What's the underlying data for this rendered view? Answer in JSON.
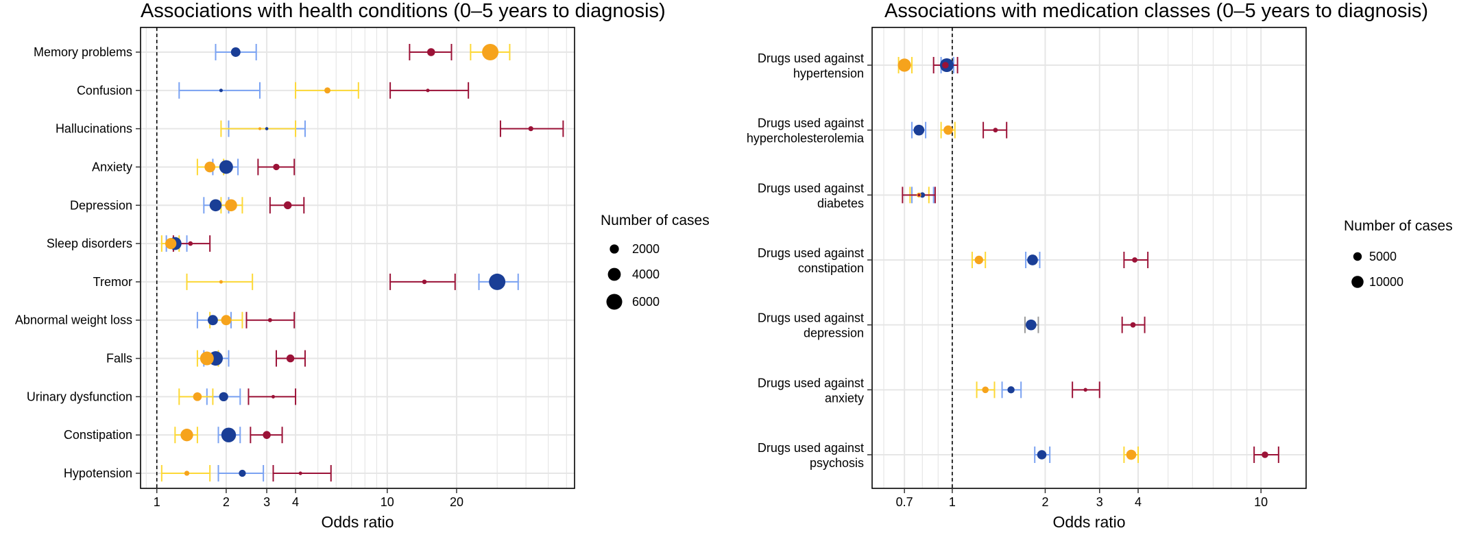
{
  "colors": {
    "grid": "#e6e6e6",
    "dark_blue": "#1a3e96",
    "light_blue": "#7aa2f2",
    "orange": "#f6a31c",
    "yellow": "#fdd835",
    "dark_red": "#9b1237",
    "gray": "#9a9a9a"
  },
  "chart_data": [
    {
      "type": "scatter",
      "title": "Associations with health conditions (0–5 years to diagnosis)",
      "xlabel": "Odds ratio",
      "x_scale": "log",
      "xlim": [
        0.85,
        65
      ],
      "x_ticks": [
        1,
        2,
        3,
        4,
        10,
        20
      ],
      "x_tick_labels": [
        "1",
        "2",
        "3",
        "4",
        "10",
        "20"
      ],
      "reference_line": 1,
      "categories": [
        "Memory problems",
        "Confusion",
        "Hallucinations",
        "Anxiety",
        "Depression",
        "Sleep disorders",
        "Tremor",
        "Abnormal weight loss",
        "Falls",
        "Urinary dysfunction",
        "Constipation",
        "Hypotension"
      ],
      "legend_title": "Number of cases",
      "legend_sizes": [
        2000,
        4000,
        6000
      ],
      "legend_labels": [
        "2000",
        "4000",
        "6000"
      ],
      "points": [
        {
          "category": "Memory problems",
          "or": 2.2,
          "lo": 1.8,
          "hi": 2.7,
          "n": 2200,
          "color": "dark_blue",
          "bar_color": "light_blue"
        },
        {
          "category": "Memory problems",
          "or": 28,
          "lo": 23,
          "hi": 34,
          "n": 6500,
          "color": "orange",
          "bar_color": "yellow"
        },
        {
          "category": "Memory problems",
          "or": 15.5,
          "lo": 12.5,
          "hi": 19,
          "n": 1500,
          "color": "dark_red",
          "bar_color": "dark_red"
        },
        {
          "category": "Confusion",
          "or": 1.9,
          "lo": 1.25,
          "hi": 2.8,
          "n": 300,
          "color": "dark_blue",
          "bar_color": "light_blue"
        },
        {
          "category": "Confusion",
          "or": 5.5,
          "lo": 4.0,
          "hi": 7.5,
          "n": 900,
          "color": "orange",
          "bar_color": "yellow"
        },
        {
          "category": "Confusion",
          "or": 15,
          "lo": 10.3,
          "hi": 22.5,
          "n": 300,
          "color": "dark_red",
          "bar_color": "dark_red"
        },
        {
          "category": "Hallucinations",
          "or": 3.0,
          "lo": 2.05,
          "hi": 4.4,
          "n": 250,
          "color": "dark_blue",
          "bar_color": "light_blue"
        },
        {
          "category": "Hallucinations",
          "or": 2.8,
          "lo": 1.9,
          "hi": 4.0,
          "n": 200,
          "color": "orange",
          "bar_color": "yellow"
        },
        {
          "category": "Hallucinations",
          "or": 42,
          "lo": 31,
          "hi": 58,
          "n": 600,
          "color": "dark_red",
          "bar_color": "dark_red"
        },
        {
          "category": "Anxiety",
          "or": 2.0,
          "lo": 1.75,
          "hi": 2.25,
          "n": 4500,
          "color": "dark_blue",
          "bar_color": "light_blue"
        },
        {
          "category": "Anxiety",
          "or": 1.7,
          "lo": 1.5,
          "hi": 1.95,
          "n": 2800,
          "color": "orange",
          "bar_color": "yellow"
        },
        {
          "category": "Anxiety",
          "or": 3.3,
          "lo": 2.75,
          "hi": 3.95,
          "n": 1000,
          "color": "dark_red",
          "bar_color": "dark_red"
        },
        {
          "category": "Depression",
          "or": 1.8,
          "lo": 1.6,
          "hi": 2.05,
          "n": 3500,
          "color": "dark_blue",
          "bar_color": "light_blue"
        },
        {
          "category": "Depression",
          "or": 2.1,
          "lo": 1.9,
          "hi": 2.35,
          "n": 3500,
          "color": "orange",
          "bar_color": "yellow"
        },
        {
          "category": "Depression",
          "or": 3.7,
          "lo": 3.1,
          "hi": 4.35,
          "n": 1500,
          "color": "dark_red",
          "bar_color": "dark_red"
        },
        {
          "category": "Sleep disorders",
          "or": 1.2,
          "lo": 1.1,
          "hi": 1.35,
          "n": 4000,
          "color": "dark_blue",
          "bar_color": "light_blue"
        },
        {
          "category": "Sleep disorders",
          "or": 1.15,
          "lo": 1.05,
          "hi": 1.25,
          "n": 3000,
          "color": "orange",
          "bar_color": "yellow"
        },
        {
          "category": "Sleep disorders",
          "or": 1.4,
          "lo": 1.18,
          "hi": 1.7,
          "n": 500,
          "color": "dark_red",
          "bar_color": "dark_red"
        },
        {
          "category": "Tremor",
          "or": 30,
          "lo": 25,
          "hi": 37,
          "n": 6500,
          "color": "dark_blue",
          "bar_color": "light_blue"
        },
        {
          "category": "Tremor",
          "or": 1.9,
          "lo": 1.35,
          "hi": 2.6,
          "n": 300,
          "color": "orange",
          "bar_color": "yellow"
        },
        {
          "category": "Tremor",
          "or": 14.5,
          "lo": 10.3,
          "hi": 19.7,
          "n": 500,
          "color": "dark_red",
          "bar_color": "dark_red"
        },
        {
          "category": "Abnormal weight loss",
          "or": 1.75,
          "lo": 1.5,
          "hi": 2.1,
          "n": 2500,
          "color": "dark_blue",
          "bar_color": "light_blue"
        },
        {
          "category": "Abnormal weight loss",
          "or": 2.0,
          "lo": 1.7,
          "hi": 2.35,
          "n": 2500,
          "color": "orange",
          "bar_color": "yellow"
        },
        {
          "category": "Abnormal weight loss",
          "or": 3.1,
          "lo": 2.45,
          "hi": 3.95,
          "n": 400,
          "color": "dark_red",
          "bar_color": "dark_red"
        },
        {
          "category": "Falls",
          "or": 1.8,
          "lo": 1.6,
          "hi": 2.05,
          "n": 5000,
          "color": "dark_blue",
          "bar_color": "light_blue"
        },
        {
          "category": "Falls",
          "or": 1.65,
          "lo": 1.5,
          "hi": 1.85,
          "n": 4500,
          "color": "orange",
          "bar_color": "yellow"
        },
        {
          "category": "Falls",
          "or": 3.8,
          "lo": 3.3,
          "hi": 4.4,
          "n": 1500,
          "color": "dark_red",
          "bar_color": "dark_red"
        },
        {
          "category": "Urinary dysfunction",
          "or": 1.95,
          "lo": 1.65,
          "hi": 2.3,
          "n": 2000,
          "color": "dark_blue",
          "bar_color": "light_blue"
        },
        {
          "category": "Urinary dysfunction",
          "or": 1.5,
          "lo": 1.25,
          "hi": 1.75,
          "n": 1800,
          "color": "orange",
          "bar_color": "yellow"
        },
        {
          "category": "Urinary dysfunction",
          "or": 3.2,
          "lo": 2.5,
          "hi": 4.0,
          "n": 300,
          "color": "dark_red",
          "bar_color": "dark_red"
        },
        {
          "category": "Constipation",
          "or": 2.05,
          "lo": 1.85,
          "hi": 2.3,
          "n": 5200,
          "color": "dark_blue",
          "bar_color": "light_blue"
        },
        {
          "category": "Constipation",
          "or": 1.35,
          "lo": 1.2,
          "hi": 1.5,
          "n": 3800,
          "color": "orange",
          "bar_color": "yellow"
        },
        {
          "category": "Constipation",
          "or": 3.0,
          "lo": 2.55,
          "hi": 3.5,
          "n": 1500,
          "color": "dark_red",
          "bar_color": "dark_red"
        },
        {
          "category": "Hypotension",
          "or": 2.35,
          "lo": 1.85,
          "hi": 2.9,
          "n": 1200,
          "color": "dark_blue",
          "bar_color": "light_blue"
        },
        {
          "category": "Hypotension",
          "or": 1.35,
          "lo": 1.05,
          "hi": 1.7,
          "n": 600,
          "color": "orange",
          "bar_color": "yellow"
        },
        {
          "category": "Hypotension",
          "or": 4.2,
          "lo": 3.2,
          "hi": 5.7,
          "n": 300,
          "color": "dark_red",
          "bar_color": "dark_red"
        }
      ]
    },
    {
      "type": "scatter",
      "title": "Associations with medication classes (0–5 years to diagnosis)",
      "xlabel": "Odds ratio",
      "x_scale": "log",
      "xlim": [
        0.55,
        14
      ],
      "x_ticks": [
        0.7,
        1,
        2,
        3,
        4,
        10
      ],
      "x_tick_labels": [
        "0.7",
        "1",
        "2",
        "3",
        "4",
        "10"
      ],
      "reference_line": 1,
      "categories": [
        "Drugs used against\nhypertension",
        "Drugs used against\nhypercholesterolemia",
        "Drugs used against\ndiabetes",
        "Drugs used against\nconstipation",
        "Drugs used against\ndepression",
        "Drugs used against\nanxiety",
        "Drugs used against\npsychosis"
      ],
      "legend_title": "Number of cases",
      "legend_sizes": [
        5000,
        10000
      ],
      "legend_labels": [
        "5000",
        "10000"
      ],
      "points": [
        {
          "category": "Drugs used against\nhypertension",
          "or": 0.7,
          "lo": 0.67,
          "hi": 0.74,
          "n": 12000,
          "color": "orange",
          "bar_color": "yellow"
        },
        {
          "category": "Drugs used against\nhypertension",
          "or": 0.96,
          "lo": 0.92,
          "hi": 1.01,
          "n": 13000,
          "color": "dark_blue",
          "bar_color": "light_blue"
        },
        {
          "category": "Drugs used against\nhypertension",
          "or": 0.95,
          "lo": 0.87,
          "hi": 1.04,
          "n": 3000,
          "color": "dark_red",
          "bar_color": "dark_red"
        },
        {
          "category": "Drugs used against\nhypercholesterolemia",
          "or": 0.78,
          "lo": 0.74,
          "hi": 0.82,
          "n": 8000,
          "color": "dark_blue",
          "bar_color": "light_blue"
        },
        {
          "category": "Drugs used against\nhypercholesterolemia",
          "or": 0.97,
          "lo": 0.92,
          "hi": 1.02,
          "n": 6000,
          "color": "orange",
          "bar_color": "yellow"
        },
        {
          "category": "Drugs used against\nhypercholesterolemia",
          "or": 1.38,
          "lo": 1.26,
          "hi": 1.5,
          "n": 1500,
          "color": "dark_red",
          "bar_color": "dark_red"
        },
        {
          "category": "Drugs used against\ndiabetes",
          "or": 0.8,
          "lo": 0.74,
          "hi": 0.87,
          "n": 2000,
          "color": "dark_blue",
          "bar_color": "light_blue"
        },
        {
          "category": "Drugs used against\ndiabetes",
          "or": 0.78,
          "lo": 0.73,
          "hi": 0.84,
          "n": 1500,
          "color": "orange",
          "bar_color": "yellow"
        },
        {
          "category": "Drugs used against\ndiabetes",
          "or": 0.78,
          "lo": 0.69,
          "hi": 0.88,
          "n": 500,
          "color": "dark_red",
          "bar_color": "dark_red"
        },
        {
          "category": "Drugs used against\nconstipation",
          "or": 1.22,
          "lo": 1.16,
          "hi": 1.28,
          "n": 5000,
          "color": "orange",
          "bar_color": "yellow"
        },
        {
          "category": "Drugs used against\nconstipation",
          "or": 1.82,
          "lo": 1.73,
          "hi": 1.92,
          "n": 8000,
          "color": "dark_blue",
          "bar_color": "light_blue"
        },
        {
          "category": "Drugs used against\nconstipation",
          "or": 3.9,
          "lo": 3.6,
          "hi": 4.3,
          "n": 2000,
          "color": "dark_red",
          "bar_color": "dark_red"
        },
        {
          "category": "Drugs used against\ndepression",
          "or": 1.8,
          "lo": 1.72,
          "hi": 1.9,
          "n": 8000,
          "color": "dark_blue",
          "bar_color": "gray"
        },
        {
          "category": "Drugs used against\ndepression",
          "or": 3.85,
          "lo": 3.55,
          "hi": 4.2,
          "n": 2000,
          "color": "dark_red",
          "bar_color": "dark_red"
        },
        {
          "category": "Drugs used against\nanxiety",
          "or": 1.28,
          "lo": 1.2,
          "hi": 1.37,
          "n": 3000,
          "color": "orange",
          "bar_color": "yellow"
        },
        {
          "category": "Drugs used against\nanxiety",
          "or": 1.55,
          "lo": 1.45,
          "hi": 1.67,
          "n": 3500,
          "color": "dark_blue",
          "bar_color": "light_blue"
        },
        {
          "category": "Drugs used against\nanxiety",
          "or": 2.7,
          "lo": 2.45,
          "hi": 3.0,
          "n": 1000,
          "color": "dark_red",
          "bar_color": "dark_red"
        },
        {
          "category": "Drugs used against\npsychosis",
          "or": 1.95,
          "lo": 1.85,
          "hi": 2.07,
          "n": 6000,
          "color": "dark_blue",
          "bar_color": "light_blue"
        },
        {
          "category": "Drugs used against\npsychosis",
          "or": 3.8,
          "lo": 3.6,
          "hi": 4.0,
          "n": 7000,
          "color": "orange",
          "bar_color": "yellow"
        },
        {
          "category": "Drugs used against\npsychosis",
          "or": 10.3,
          "lo": 9.5,
          "hi": 11.4,
          "n": 3000,
          "color": "dark_red",
          "bar_color": "dark_red"
        }
      ]
    }
  ]
}
